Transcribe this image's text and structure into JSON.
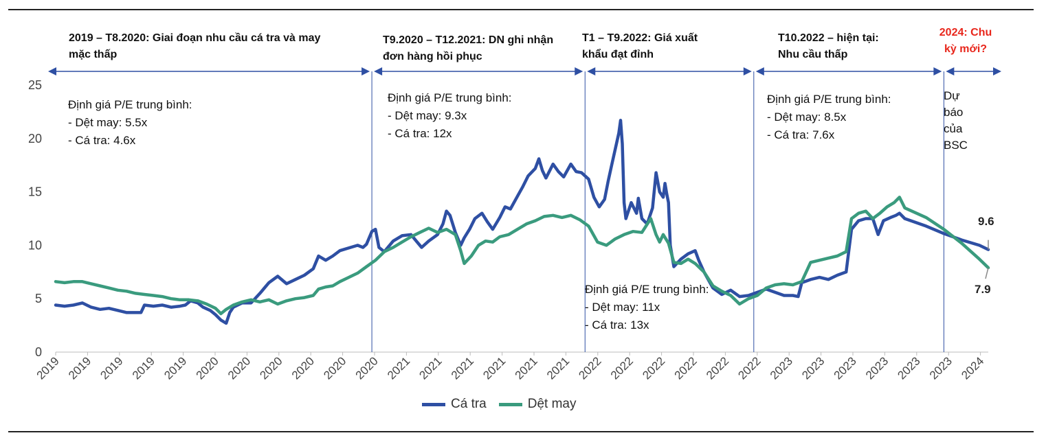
{
  "chart_data": {
    "type": "line",
    "title": "",
    "xlabel": "",
    "ylabel": "",
    "ylim": [
      0,
      25
    ],
    "yticks": [
      0,
      5,
      10,
      15,
      20,
      25
    ],
    "x_tick_labels": [
      "2019",
      "2019",
      "2019",
      "2019",
      "2019",
      "2020",
      "2020",
      "2020",
      "2020",
      "2020",
      "2020",
      "2021",
      "2021",
      "2021",
      "2021",
      "2021",
      "2021",
      "2022",
      "2022",
      "2022",
      "2022",
      "2022",
      "2022",
      "2023",
      "2023",
      "2023",
      "2023",
      "2023",
      "2023",
      "2024"
    ],
    "x_range": [
      2019.0,
      2024.25
    ],
    "series": [
      {
        "name": "Cá tra",
        "color": "#2e4fa3",
        "points": [
          [
            2019.0,
            4.4
          ],
          [
            2019.05,
            4.3
          ],
          [
            2019.1,
            4.4
          ],
          [
            2019.15,
            4.6
          ],
          [
            2019.2,
            4.2
          ],
          [
            2019.25,
            4.0
          ],
          [
            2019.3,
            4.1
          ],
          [
            2019.35,
            3.9
          ],
          [
            2019.4,
            3.7
          ],
          [
            2019.45,
            3.7
          ],
          [
            2019.48,
            3.7
          ],
          [
            2019.5,
            4.4
          ],
          [
            2019.55,
            4.3
          ],
          [
            2019.6,
            4.4
          ],
          [
            2019.65,
            4.2
          ],
          [
            2019.7,
            4.3
          ],
          [
            2019.73,
            4.4
          ],
          [
            2019.76,
            4.8
          ],
          [
            2019.8,
            4.6
          ],
          [
            2019.83,
            4.2
          ],
          [
            2019.87,
            3.9
          ],
          [
            2019.9,
            3.5
          ],
          [
            2019.93,
            3.0
          ],
          [
            2019.96,
            2.7
          ],
          [
            2019.98,
            3.7
          ],
          [
            2020.0,
            4.2
          ],
          [
            2020.05,
            4.6
          ],
          [
            2020.1,
            4.6
          ],
          [
            2020.15,
            5.5
          ],
          [
            2020.2,
            6.5
          ],
          [
            2020.25,
            7.1
          ],
          [
            2020.3,
            6.4
          ],
          [
            2020.35,
            6.8
          ],
          [
            2020.4,
            7.2
          ],
          [
            2020.45,
            7.8
          ],
          [
            2020.48,
            9.0
          ],
          [
            2020.52,
            8.6
          ],
          [
            2020.56,
            9.0
          ],
          [
            2020.6,
            9.5
          ],
          [
            2020.66,
            9.8
          ],
          [
            2020.7,
            10.0
          ],
          [
            2020.73,
            9.8
          ],
          [
            2020.75,
            10.1
          ],
          [
            2020.78,
            11.3
          ],
          [
            2020.8,
            11.5
          ],
          [
            2020.82,
            9.8
          ],
          [
            2020.85,
            9.4
          ],
          [
            2020.9,
            10.4
          ],
          [
            2020.95,
            10.9
          ],
          [
            2021.0,
            11.0
          ],
          [
            2021.03,
            10.4
          ],
          [
            2021.06,
            9.8
          ],
          [
            2021.1,
            10.4
          ],
          [
            2021.15,
            11.0
          ],
          [
            2021.18,
            12.0
          ],
          [
            2021.2,
            13.2
          ],
          [
            2021.22,
            12.8
          ],
          [
            2021.25,
            11.2
          ],
          [
            2021.28,
            10.0
          ],
          [
            2021.3,
            10.7
          ],
          [
            2021.33,
            11.5
          ],
          [
            2021.36,
            12.5
          ],
          [
            2021.4,
            13.0
          ],
          [
            2021.43,
            12.2
          ],
          [
            2021.46,
            11.5
          ],
          [
            2021.5,
            12.6
          ],
          [
            2021.53,
            13.6
          ],
          [
            2021.56,
            13.4
          ],
          [
            2021.6,
            14.6
          ],
          [
            2021.63,
            15.5
          ],
          [
            2021.66,
            16.5
          ],
          [
            2021.7,
            17.2
          ],
          [
            2021.72,
            18.1
          ],
          [
            2021.74,
            17.0
          ],
          [
            2021.76,
            16.3
          ],
          [
            2021.8,
            17.6
          ],
          [
            2021.83,
            16.9
          ],
          [
            2021.86,
            16.4
          ],
          [
            2021.9,
            17.6
          ],
          [
            2021.93,
            16.9
          ],
          [
            2021.96,
            16.8
          ],
          [
            2022.0,
            16.2
          ],
          [
            2022.03,
            14.5
          ],
          [
            2022.06,
            13.6
          ],
          [
            2022.09,
            14.3
          ],
          [
            2022.11,
            16.0
          ],
          [
            2022.13,
            17.5
          ],
          [
            2022.15,
            19.0
          ],
          [
            2022.17,
            20.5
          ],
          [
            2022.18,
            21.7
          ],
          [
            2022.19,
            19.5
          ],
          [
            2022.2,
            14.0
          ],
          [
            2022.21,
            12.5
          ],
          [
            2022.24,
            14.0
          ],
          [
            2022.27,
            13.0
          ],
          [
            2022.28,
            14.4
          ],
          [
            2022.3,
            12.5
          ],
          [
            2022.33,
            12.0
          ],
          [
            2022.36,
            13.5
          ],
          [
            2022.38,
            16.8
          ],
          [
            2022.4,
            15.0
          ],
          [
            2022.42,
            14.5
          ],
          [
            2022.43,
            15.8
          ],
          [
            2022.44,
            14.8
          ],
          [
            2022.45,
            14.0
          ],
          [
            2022.46,
            10.0
          ],
          [
            2022.48,
            8.0
          ],
          [
            2022.52,
            8.7
          ],
          [
            2022.56,
            9.2
          ],
          [
            2022.6,
            9.5
          ],
          [
            2022.62,
            8.6
          ],
          [
            2022.65,
            7.5
          ],
          [
            2022.7,
            6.0
          ],
          [
            2022.75,
            5.4
          ],
          [
            2022.8,
            5.8
          ],
          [
            2022.85,
            5.2
          ],
          [
            2022.9,
            5.3
          ],
          [
            2022.95,
            5.6
          ],
          [
            2023.0,
            5.9
          ],
          [
            2023.05,
            5.6
          ],
          [
            2023.1,
            5.3
          ],
          [
            2023.15,
            5.3
          ],
          [
            2023.18,
            5.2
          ],
          [
            2023.2,
            6.5
          ],
          [
            2023.25,
            6.8
          ],
          [
            2023.3,
            7.0
          ],
          [
            2023.35,
            6.8
          ],
          [
            2023.4,
            7.2
          ],
          [
            2023.45,
            7.5
          ],
          [
            2023.48,
            11.5
          ],
          [
            2023.52,
            12.3
          ],
          [
            2023.56,
            12.5
          ],
          [
            2023.6,
            12.5
          ],
          [
            2023.63,
            11.0
          ],
          [
            2023.66,
            12.3
          ],
          [
            2023.7,
            12.6
          ],
          [
            2023.73,
            12.8
          ],
          [
            2023.75,
            13.0
          ],
          [
            2023.78,
            12.5
          ],
          [
            2023.9,
            11.8
          ],
          [
            2024.0,
            11.1
          ],
          [
            2024.1,
            10.5
          ],
          [
            2024.2,
            10.0
          ],
          [
            2024.25,
            9.6
          ]
        ]
      },
      {
        "name": "Dệt may",
        "color": "#3a9b7e",
        "points": [
          [
            2019.0,
            6.6
          ],
          [
            2019.05,
            6.5
          ],
          [
            2019.1,
            6.6
          ],
          [
            2019.15,
            6.6
          ],
          [
            2019.2,
            6.4
          ],
          [
            2019.25,
            6.2
          ],
          [
            2019.3,
            6.0
          ],
          [
            2019.35,
            5.8
          ],
          [
            2019.4,
            5.7
          ],
          [
            2019.45,
            5.5
          ],
          [
            2019.5,
            5.4
          ],
          [
            2019.55,
            5.3
          ],
          [
            2019.6,
            5.2
          ],
          [
            2019.65,
            5.0
          ],
          [
            2019.7,
            4.9
          ],
          [
            2019.75,
            4.9
          ],
          [
            2019.8,
            4.8
          ],
          [
            2019.85,
            4.5
          ],
          [
            2019.9,
            4.1
          ],
          [
            2019.93,
            3.6
          ],
          [
            2019.96,
            4.0
          ],
          [
            2020.0,
            4.4
          ],
          [
            2020.05,
            4.7
          ],
          [
            2020.1,
            4.9
          ],
          [
            2020.15,
            4.7
          ],
          [
            2020.2,
            4.9
          ],
          [
            2020.25,
            4.5
          ],
          [
            2020.3,
            4.8
          ],
          [
            2020.35,
            5.0
          ],
          [
            2020.4,
            5.1
          ],
          [
            2020.45,
            5.3
          ],
          [
            2020.48,
            5.9
          ],
          [
            2020.52,
            6.1
          ],
          [
            2020.56,
            6.2
          ],
          [
            2020.6,
            6.6
          ],
          [
            2020.65,
            7.0
          ],
          [
            2020.7,
            7.4
          ],
          [
            2020.75,
            8.0
          ],
          [
            2020.8,
            8.6
          ],
          [
            2020.85,
            9.4
          ],
          [
            2020.9,
            9.8
          ],
          [
            2020.95,
            10.3
          ],
          [
            2021.0,
            10.8
          ],
          [
            2021.05,
            11.2
          ],
          [
            2021.1,
            11.6
          ],
          [
            2021.15,
            11.2
          ],
          [
            2021.2,
            11.5
          ],
          [
            2021.25,
            11.0
          ],
          [
            2021.28,
            9.5
          ],
          [
            2021.3,
            8.3
          ],
          [
            2021.34,
            9.0
          ],
          [
            2021.38,
            10.0
          ],
          [
            2021.42,
            10.4
          ],
          [
            2021.46,
            10.3
          ],
          [
            2021.5,
            10.8
          ],
          [
            2021.55,
            11.0
          ],
          [
            2021.6,
            11.5
          ],
          [
            2021.65,
            12.0
          ],
          [
            2021.7,
            12.3
          ],
          [
            2021.75,
            12.7
          ],
          [
            2021.8,
            12.8
          ],
          [
            2021.85,
            12.6
          ],
          [
            2021.9,
            12.8
          ],
          [
            2021.95,
            12.4
          ],
          [
            2022.0,
            11.8
          ],
          [
            2022.05,
            10.3
          ],
          [
            2022.1,
            10.0
          ],
          [
            2022.15,
            10.6
          ],
          [
            2022.2,
            11.0
          ],
          [
            2022.25,
            11.3
          ],
          [
            2022.3,
            11.2
          ],
          [
            2022.35,
            12.5
          ],
          [
            2022.38,
            11.0
          ],
          [
            2022.4,
            10.3
          ],
          [
            2022.42,
            11.0
          ],
          [
            2022.45,
            10.2
          ],
          [
            2022.48,
            8.4
          ],
          [
            2022.52,
            8.3
          ],
          [
            2022.56,
            8.7
          ],
          [
            2022.6,
            8.3
          ],
          [
            2022.65,
            7.5
          ],
          [
            2022.7,
            6.2
          ],
          [
            2022.75,
            5.7
          ],
          [
            2022.8,
            5.3
          ],
          [
            2022.85,
            4.5
          ],
          [
            2022.9,
            5.0
          ],
          [
            2022.95,
            5.3
          ],
          [
            2023.0,
            6.0
          ],
          [
            2023.05,
            6.3
          ],
          [
            2023.1,
            6.4
          ],
          [
            2023.15,
            6.3
          ],
          [
            2023.2,
            6.6
          ],
          [
            2023.25,
            8.4
          ],
          [
            2023.3,
            8.6
          ],
          [
            2023.35,
            8.8
          ],
          [
            2023.4,
            9.0
          ],
          [
            2023.45,
            9.4
          ],
          [
            2023.48,
            12.5
          ],
          [
            2023.52,
            13.0
          ],
          [
            2023.56,
            13.2
          ],
          [
            2023.6,
            12.5
          ],
          [
            2023.64,
            13.0
          ],
          [
            2023.68,
            13.6
          ],
          [
            2023.72,
            14.0
          ],
          [
            2023.75,
            14.5
          ],
          [
            2023.78,
            13.5
          ],
          [
            2023.9,
            12.6
          ],
          [
            2024.0,
            11.5
          ],
          [
            2024.1,
            10.2
          ],
          [
            2024.2,
            8.7
          ],
          [
            2024.25,
            7.9
          ]
        ]
      }
    ],
    "phase_boundaries": [
      2020.78,
      2021.98,
      2022.93,
      2024.0
    ],
    "phases": [
      {
        "title_line1": "2019 – T8.2020: Giai đoạn nhu cầu cá tra và may",
        "title_line2": "mặc thấp"
      },
      {
        "title_line1": "T9.2020 – T12.2021: DN ghi nhận",
        "title_line2": "đơn hàng hồi phục"
      },
      {
        "title_line1": "T1 – T9.2022: Giá xuất",
        "title_line2": "khẩu đạt đỉnh"
      },
      {
        "title_line1": "T10.2022 – hiện tại:",
        "title_line2": "Nhu cầu thấp"
      },
      {
        "title_line1": "2024: Chu",
        "title_line2": "kỳ mới?"
      }
    ],
    "notes": [
      {
        "heading": "Định giá P/E trung bình:",
        "line1": "- Dệt may: 5.5x",
        "line2": "- Cá tra: 4.6x"
      },
      {
        "heading": "Định giá P/E trung bình:",
        "line1": "- Dệt may: 9.3x",
        "line2": "- Cá tra: 12x"
      },
      {
        "heading": "Định giá P/E trung bình:",
        "line1": "- Dệt may: 11x",
        "line2": "- Cá tra: 13x"
      },
      {
        "heading": "Định giá P/E trung bình:",
        "line1": "- Dệt may: 8.5x",
        "line2": "- Cá tra: 7.6x"
      }
    ],
    "forecast_note": [
      "Dự",
      "báo",
      "của",
      "BSC"
    ],
    "end_labels": {
      "ca_tra": "9.6",
      "det_may": "7.9"
    },
    "legend": [
      {
        "label": "Cá tra",
        "color": "#2e4fa3"
      },
      {
        "label": "Dệt may",
        "color": "#3a9b7e"
      }
    ]
  }
}
